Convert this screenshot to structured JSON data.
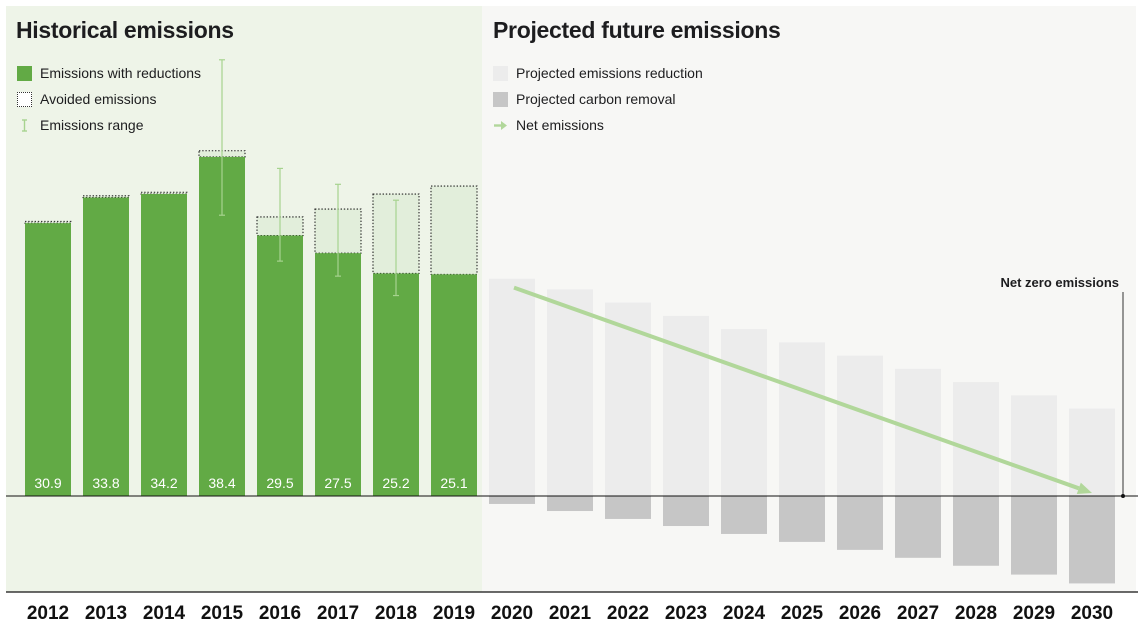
{
  "chart_data": {
    "type": "bar",
    "historical": {
      "title": "Historical emissions",
      "legend": [
        {
          "label": "Emissions with reductions",
          "icon": "green-square-icon"
        },
        {
          "label": "Avoided emissions",
          "icon": "dotted-square-icon"
        },
        {
          "label": "Emissions range",
          "icon": "range-bar-icon"
        }
      ],
      "categories": [
        "2012",
        "2013",
        "2014",
        "2015",
        "2016",
        "2017",
        "2018",
        "2019"
      ],
      "series": [
        {
          "name": "Emissions with reductions",
          "values": [
            30.9,
            33.8,
            34.2,
            38.4,
            29.5,
            27.5,
            25.2,
            25.1
          ]
        },
        {
          "name": "Avoided emissions",
          "values": [
            0.2,
            0.2,
            0.2,
            0.7,
            2.1,
            5.0,
            9.0,
            10.0
          ]
        }
      ],
      "data_labels": [
        "30.9",
        "33.8",
        "34.2",
        "38.4",
        "29.5",
        "27.5",
        "25.2",
        "25.1"
      ],
      "emissions_range": [
        {
          "year": "2015",
          "low": 31.8,
          "high": 49.4
        },
        {
          "year": "2016",
          "low": 26.6,
          "high": 37.1
        },
        {
          "year": "2017",
          "low": 24.9,
          "high": 35.3
        },
        {
          "year": "2018",
          "low": 22.7,
          "high": 33.5
        }
      ]
    },
    "projected": {
      "title": "Projected future emissions",
      "legend": [
        {
          "label": "Projected emissions reduction",
          "icon": "light-square-icon"
        },
        {
          "label": "Projected carbon removal",
          "icon": "gray-square-icon"
        },
        {
          "label": "Net emissions",
          "icon": "arrow-right-icon"
        }
      ],
      "categories": [
        "2020",
        "2021",
        "2022",
        "2023",
        "2024",
        "2025",
        "2026",
        "2027",
        "2028",
        "2029",
        "2030"
      ],
      "series": [
        {
          "name": "Projected emissions reduction",
          "values": [
            24.6,
            23.4,
            21.9,
            20.4,
            18.9,
            17.4,
            15.9,
            14.4,
            12.9,
            11.4,
            9.9
          ]
        },
        {
          "name": "Projected carbon removal",
          "values": [
            -0.9,
            -1.7,
            -2.6,
            -3.4,
            -4.3,
            -5.2,
            -6.1,
            -7.0,
            -7.9,
            -8.9,
            -9.9
          ]
        }
      ],
      "net_emissions": {
        "start_year": "2020",
        "start_value": 23.6,
        "end_year": "2030",
        "end_value": 0
      }
    },
    "ylim": [
      -11,
      50
    ],
    "annotation": "Net zero emissions",
    "colors": {
      "reductions": "#62aa45",
      "avoided": "#e2eedb",
      "range": "#a7d38f",
      "projected": "#ececec",
      "removal": "#c6c6c6",
      "arrow": "#b1d79a"
    }
  }
}
